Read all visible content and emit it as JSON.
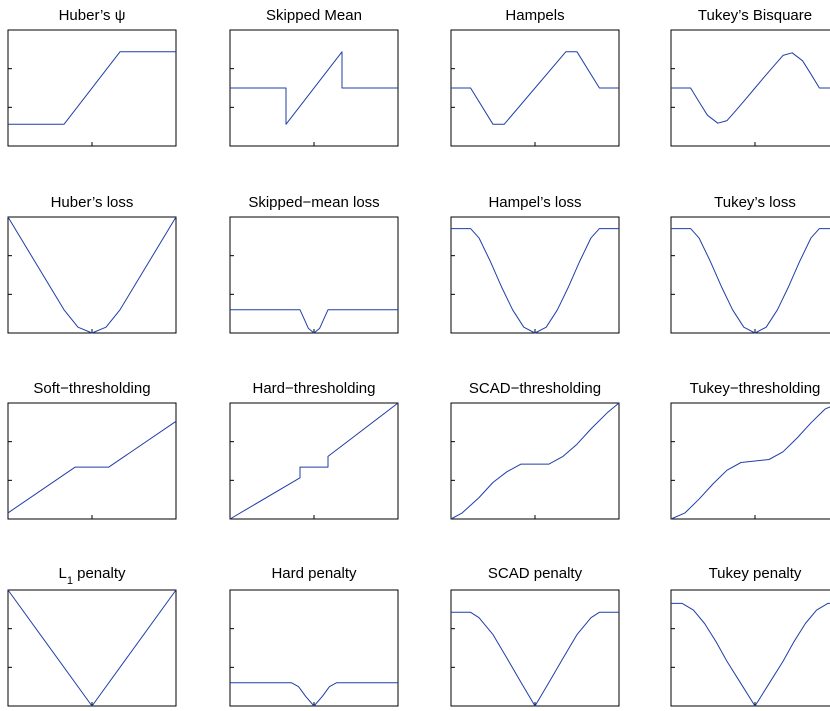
{
  "colors": {
    "line": "#1f3fa8",
    "axes": "#000000",
    "background": "#ffffff"
  },
  "chart_data": [
    {
      "type": "line",
      "title": "Huber’s ψ",
      "grid": false,
      "x": [
        -3,
        -1,
        1,
        3
      ],
      "y": [
        -1,
        -1,
        1,
        1
      ],
      "ylim": [
        -1.6,
        1.6
      ]
    },
    {
      "type": "line",
      "title": "Skipped Mean",
      "grid": false,
      "x": [
        -3,
        -1,
        -1,
        1,
        1,
        3
      ],
      "y": [
        0,
        0,
        -1,
        1,
        0,
        0
      ],
      "ylim": [
        -1.6,
        1.6
      ]
    },
    {
      "type": "line",
      "title": "Hampels",
      "grid": false,
      "x": [
        -3,
        -2.3,
        -1.5,
        -1.1,
        1.1,
        1.5,
        2.3,
        3
      ],
      "y": [
        0,
        0,
        -1,
        -1,
        1,
        1,
        0,
        0
      ],
      "ylim": [
        -1.6,
        1.6
      ]
    },
    {
      "type": "line",
      "title": "Tukey’s Bisquare",
      "grid": false,
      "x": [
        -3,
        -2.3,
        -2.0,
        -1.7,
        -1.33,
        -1.0,
        -0.66,
        -0.33,
        0,
        0.33,
        0.66,
        1.0,
        1.33,
        1.7,
        2.0,
        2.3,
        3
      ],
      "y": [
        0,
        0,
        -0.38,
        -0.75,
        -0.97,
        -0.9,
        -0.6,
        -0.3,
        0,
        0.3,
        0.6,
        0.9,
        0.97,
        0.75,
        0.38,
        0,
        0
      ],
      "ylim": [
        -1.6,
        1.6
      ]
    },
    {
      "type": "line",
      "title": "Huber’s loss",
      "grid": false,
      "x": [
        -3,
        -1,
        -0.5,
        0,
        0.5,
        1,
        3
      ],
      "y": [
        2.5,
        0.5,
        0.125,
        0,
        0.125,
        0.5,
        2.5
      ],
      "ylim": [
        0,
        2.5
      ]
    },
    {
      "type": "line",
      "title": "Skipped−mean loss",
      "grid": false,
      "x": [
        -3,
        -0.5,
        -0.35,
        -0.2,
        0,
        0.2,
        0.35,
        0.5,
        3
      ],
      "y": [
        0.5,
        0.5,
        0.3,
        0.1,
        0,
        0.1,
        0.3,
        0.5,
        0.5
      ],
      "ylim": [
        0,
        2.5
      ]
    },
    {
      "type": "line",
      "title": "Hampel’s loss",
      "grid": false,
      "x": [
        -3,
        -2.3,
        -2.0,
        -1.6,
        -1.2,
        -0.8,
        -0.4,
        0,
        0.4,
        0.8,
        1.2,
        1.6,
        2.0,
        2.3,
        3
      ],
      "y": [
        0.9,
        0.9,
        0.82,
        0.62,
        0.4,
        0.2,
        0.05,
        0,
        0.05,
        0.2,
        0.4,
        0.62,
        0.82,
        0.9,
        0.9
      ],
      "ylim": [
        0,
        1
      ]
    },
    {
      "type": "line",
      "title": "Tukey’s loss",
      "grid": false,
      "x": [
        -3,
        -2.3,
        -2.0,
        -1.6,
        -1.2,
        -0.8,
        -0.4,
        0,
        0.4,
        0.8,
        1.2,
        1.6,
        2.0,
        2.3,
        3
      ],
      "y": [
        0.9,
        0.9,
        0.82,
        0.62,
        0.4,
        0.2,
        0.05,
        0,
        0.05,
        0.2,
        0.4,
        0.62,
        0.82,
        0.9,
        0.9
      ],
      "ylim": [
        0,
        1
      ]
    },
    {
      "type": "line",
      "title": "Soft−thresholding",
      "grid": false,
      "x": [
        -3,
        -0.6,
        0.6,
        3
      ],
      "y": [
        -1.7,
        -0.2,
        -0.2,
        1.3
      ],
      "ylim": [
        -1.9,
        1.9
      ]
    },
    {
      "type": "line",
      "title": "Hard−thresholding",
      "grid": false,
      "x": [
        -3,
        -0.5,
        -0.5,
        0.5,
        0.5,
        3
      ],
      "y": [
        -1.9,
        -0.55,
        -0.2,
        -0.2,
        0.15,
        1.9
      ],
      "ylim": [
        -1.9,
        1.9
      ]
    },
    {
      "type": "line",
      "title": "SCAD−thresholding",
      "grid": false,
      "x": [
        -3,
        -2.6,
        -2.0,
        -1.5,
        -1.0,
        -0.5,
        0.5,
        1.0,
        1.5,
        2.0,
        2.6,
        3
      ],
      "y": [
        -1.9,
        -1.7,
        -1.2,
        -0.7,
        -0.35,
        -0.1,
        -0.1,
        0.15,
        0.55,
        1.05,
        1.6,
        1.9
      ],
      "ylim": [
        -1.9,
        1.9
      ]
    },
    {
      "type": "line",
      "title": "Tukey−thresholding",
      "grid": false,
      "x": [
        -3,
        -2.5,
        -2.0,
        -1.5,
        -1.0,
        -0.5,
        0,
        0.5,
        1.0,
        1.5,
        2.0,
        2.5,
        3
      ],
      "y": [
        -1.9,
        -1.7,
        -1.25,
        -0.75,
        -0.3,
        -0.05,
        0,
        0.05,
        0.3,
        0.75,
        1.25,
        1.7,
        1.9
      ],
      "ylim": [
        -1.9,
        1.9
      ]
    },
    {
      "type": "line",
      "title": "L1 penalty",
      "title_main": "L",
      "title_sub": "1",
      "title_rest": " penalty",
      "grid": false,
      "x": [
        -3,
        0,
        3
      ],
      "y": [
        3,
        0,
        3
      ],
      "ylim": [
        0,
        3
      ]
    },
    {
      "type": "line",
      "title": "Hard penalty",
      "grid": false,
      "x": [
        -3,
        -0.8,
        -0.55,
        -0.3,
        0,
        0.3,
        0.55,
        0.8,
        3
      ],
      "y": [
        0.6,
        0.6,
        0.5,
        0.25,
        0,
        0.25,
        0.5,
        0.6,
        0.6
      ],
      "ylim": [
        0,
        3
      ]
    },
    {
      "type": "line",
      "title": "SCAD penalty",
      "grid": false,
      "x": [
        -3,
        -2.3,
        -2.0,
        -1.5,
        -1.0,
        -0.5,
        0,
        0.5,
        1.0,
        1.5,
        2.0,
        2.3,
        3
      ],
      "y": [
        2.1,
        2.1,
        1.98,
        1.6,
        1.07,
        0.53,
        0,
        0.53,
        1.07,
        1.6,
        1.98,
        2.1,
        2.1
      ],
      "ylim": [
        0,
        2.6
      ]
    },
    {
      "type": "line",
      "title": "Tukey penalty",
      "grid": false,
      "x": [
        -3,
        -2.6,
        -2.2,
        -1.8,
        -1.4,
        -1.0,
        -0.5,
        0,
        0.5,
        1.0,
        1.4,
        1.8,
        2.2,
        2.6,
        3
      ],
      "y": [
        2.3,
        2.3,
        2.15,
        1.85,
        1.45,
        1.0,
        0.5,
        0,
        0.5,
        1.0,
        1.45,
        1.85,
        2.15,
        2.3,
        2.3
      ],
      "ylim": [
        0,
        2.6
      ]
    }
  ]
}
